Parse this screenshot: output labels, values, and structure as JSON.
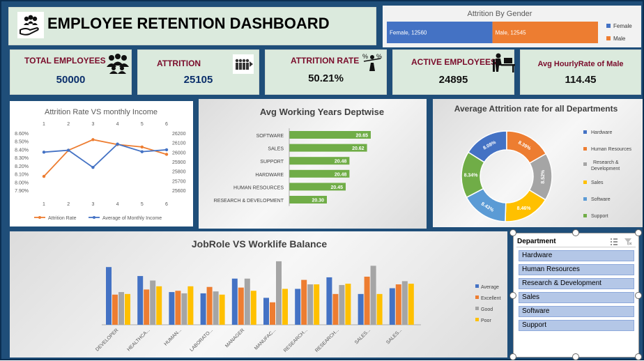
{
  "header": {
    "title": "EMPLOYEE RETENTION DASHBOARD",
    "icon": "hand-people-icon"
  },
  "kpis": [
    {
      "title": "TOTAL EMPLOYEES",
      "value": "50000",
      "icon": "people-group-icon"
    },
    {
      "title": "ATTRITION",
      "value": "25105",
      "icon": "people-leaving-icon"
    },
    {
      "title": "ATTRITION RATE",
      "value": "50.21%",
      "icon": "balance-percent-icon"
    },
    {
      "title": "ACTIVE EMPLOYEES",
      "value": "24895",
      "icon": "person-desk-icon"
    },
    {
      "title": "Avg HourlyRate of Male",
      "value": "114.45"
    }
  ],
  "colors": {
    "female": "#4472c4",
    "male": "#ed7d31",
    "gray": "#a5a5a5",
    "yellow": "#ffc000",
    "green": "#70ad47",
    "lightblue": "#5b9bd5",
    "navy": "#1f4e79"
  },
  "chart_data": [
    {
      "id": "gender",
      "type": "bar",
      "title": "Attrition By Gender",
      "series": [
        {
          "name": "Female",
          "label": "Female, 12560",
          "values": [
            12560
          ]
        },
        {
          "name": "Male",
          "label": "Male, 12545",
          "values": [
            12545
          ]
        }
      ],
      "stacked": true,
      "legend": "right"
    },
    {
      "id": "income",
      "type": "line",
      "title": "Attrition Rate VS monthly Income",
      "x": [
        1,
        2,
        3,
        4,
        5,
        6
      ],
      "series": [
        {
          "name": "Attrition Rate",
          "axis": "left",
          "values": [
            8.07,
            8.39,
            8.52,
            8.46,
            8.43,
            8.34
          ]
        },
        {
          "name": "Average of Monthly Income",
          "axis": "right",
          "values": [
            26000,
            26020,
            25840,
            26085,
            26005,
            26025
          ]
        }
      ],
      "y_left_ticks": [
        "8.60%",
        "8.50%",
        "8.40%",
        "8.30%",
        "8.20%",
        "8.10%",
        "8.00%",
        "7.90%"
      ],
      "y_left_range": [
        7.9,
        8.6
      ],
      "y_right_ticks": [
        "26200",
        "26100",
        "26000",
        "25900",
        "25800",
        "25700",
        "25600"
      ],
      "y_right_range": [
        25600,
        26200
      ],
      "legend": "bottom"
    },
    {
      "id": "years",
      "type": "bar",
      "orientation": "horizontal",
      "title": "Avg Working Years Deptwise",
      "categories": [
        "SOFTWARE",
        "SALES",
        "SUPPORT",
        "HARDWARE",
        "HUMAN RESOURCES",
        "RESEARCH & DEVELOPMENT"
      ],
      "values": [
        20.65,
        20.62,
        20.48,
        20.48,
        20.45,
        20.3
      ],
      "labels": [
        "20.65",
        "20.62",
        "20.48",
        "20.48",
        "20.45",
        "20.30"
      ]
    },
    {
      "id": "donut",
      "type": "pie",
      "subtype": "donut",
      "title": "Average Attrition rate for all Departments",
      "categories": [
        "Hardware",
        "Human Resources",
        "Research & Development",
        "Sales",
        "Software",
        "Support"
      ],
      "values": [
        8.08,
        8.39,
        8.52,
        8.46,
        8.43,
        8.34
      ],
      "labels": [
        "8.08%",
        "8.39%",
        "8.52%",
        "8.46%",
        "8.43%",
        "8.34%"
      ],
      "colors": [
        "#4472c4",
        "#ed7d31",
        "#a5a5a5",
        "#ffc000",
        "#5b9bd5",
        "#70ad47"
      ],
      "legend": "right"
    },
    {
      "id": "jobrole",
      "type": "bar",
      "title": "JobRole VS Worklife Balance",
      "categories": [
        "DEVELOPER",
        "HEALTHCA...",
        "HUMAN...",
        "LABORATO...",
        "MANAGER",
        "MANUFAC...",
        "RESEARCH...",
        "RESEARCH...",
        "SALES...",
        "SALES..."
      ],
      "series": [
        {
          "name": "Average",
          "values": [
            90,
            76,
            51,
            49,
            72,
            42,
            56,
            74,
            48,
            57
          ]
        },
        {
          "name": "Excellent",
          "values": [
            47,
            55,
            53,
            59,
            58,
            35,
            70,
            48,
            75,
            63
          ]
        },
        {
          "name": "Good",
          "values": [
            51,
            69,
            49,
            52,
            72,
            99,
            63,
            62,
            92,
            68
          ]
        },
        {
          "name": "Poor",
          "values": [
            48,
            60,
            60,
            47,
            53,
            56,
            63,
            64,
            48,
            64
          ]
        }
      ],
      "ylim": [
        0,
        100
      ],
      "legend": "right"
    }
  ],
  "slicer": {
    "title": "Department",
    "items": [
      "Hardware",
      "Human Resources",
      "Research & Development",
      "Sales",
      "Software",
      "Support"
    ],
    "multi_select_icon": "multi-select-icon",
    "clear_filter_icon": "clear-filter-icon"
  }
}
